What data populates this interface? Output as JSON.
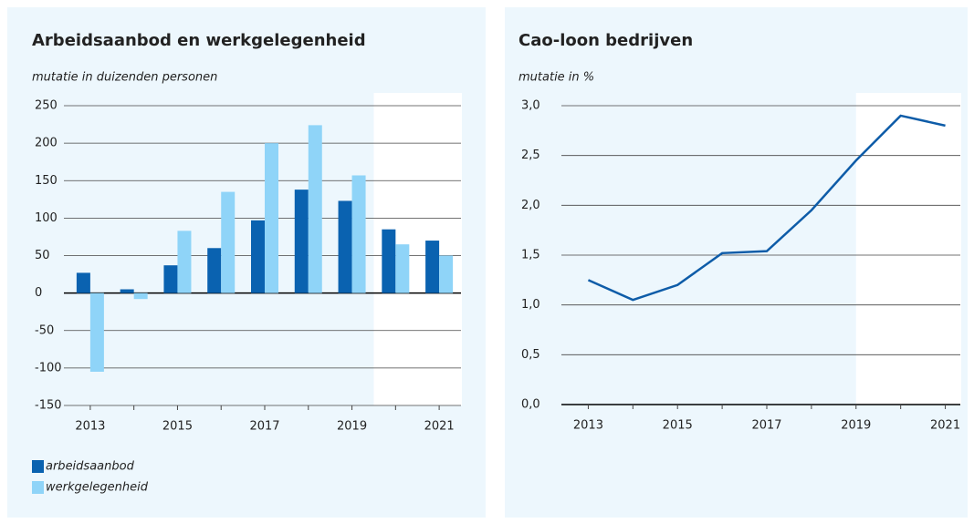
{
  "chart_data": [
    {
      "type": "bar",
      "title": "Arbeidsaanbod en werkgelegenheid",
      "subtitle": "mutatie in duizenden personen",
      "categories": [
        "2013",
        null,
        "2015",
        null,
        "2017",
        null,
        "2019",
        null,
        "2021"
      ],
      "series": [
        {
          "name": "arbeidsaanbod",
          "color": "#0a62b0",
          "values": [
            27,
            5,
            37,
            60,
            97,
            138,
            123,
            85,
            70
          ]
        },
        {
          "name": "werkgelegenheid",
          "color": "#8fd4f8",
          "values": [
            -105,
            -8,
            83,
            135,
            200,
            224,
            157,
            65,
            50
          ]
        }
      ],
      "ylim": [
        -150,
        250
      ],
      "yticks": [
        -150,
        -100,
        -50,
        0,
        50,
        100,
        150,
        200,
        250
      ],
      "grid": true,
      "legend": "bottom"
    },
    {
      "type": "line",
      "title": "Cao-loon bedrijven",
      "subtitle": "mutatie in %",
      "categories": [
        "2013",
        null,
        "2015",
        null,
        "2017",
        null,
        "2019",
        null,
        "2021"
      ],
      "series": [
        {
          "name": "cao-loon",
          "color": "#0e5ca8",
          "values": [
            1.25,
            1.05,
            1.2,
            1.52,
            1.54,
            1.95,
            2.45,
            2.9,
            2.8
          ]
        }
      ],
      "ylim": [
        0,
        3
      ],
      "yticks": [
        {
          "value": 0,
          "label": "0,0"
        },
        {
          "value": 0.5,
          "label": "0,5"
        },
        {
          "value": 1,
          "label": "1,0"
        },
        {
          "value": 1.5,
          "label": "1,5"
        },
        {
          "value": 2,
          "label": "2,0"
        },
        {
          "value": 2.5,
          "label": "2,5"
        },
        {
          "value": 3,
          "label": "3,0"
        }
      ],
      "grid": true
    }
  ]
}
